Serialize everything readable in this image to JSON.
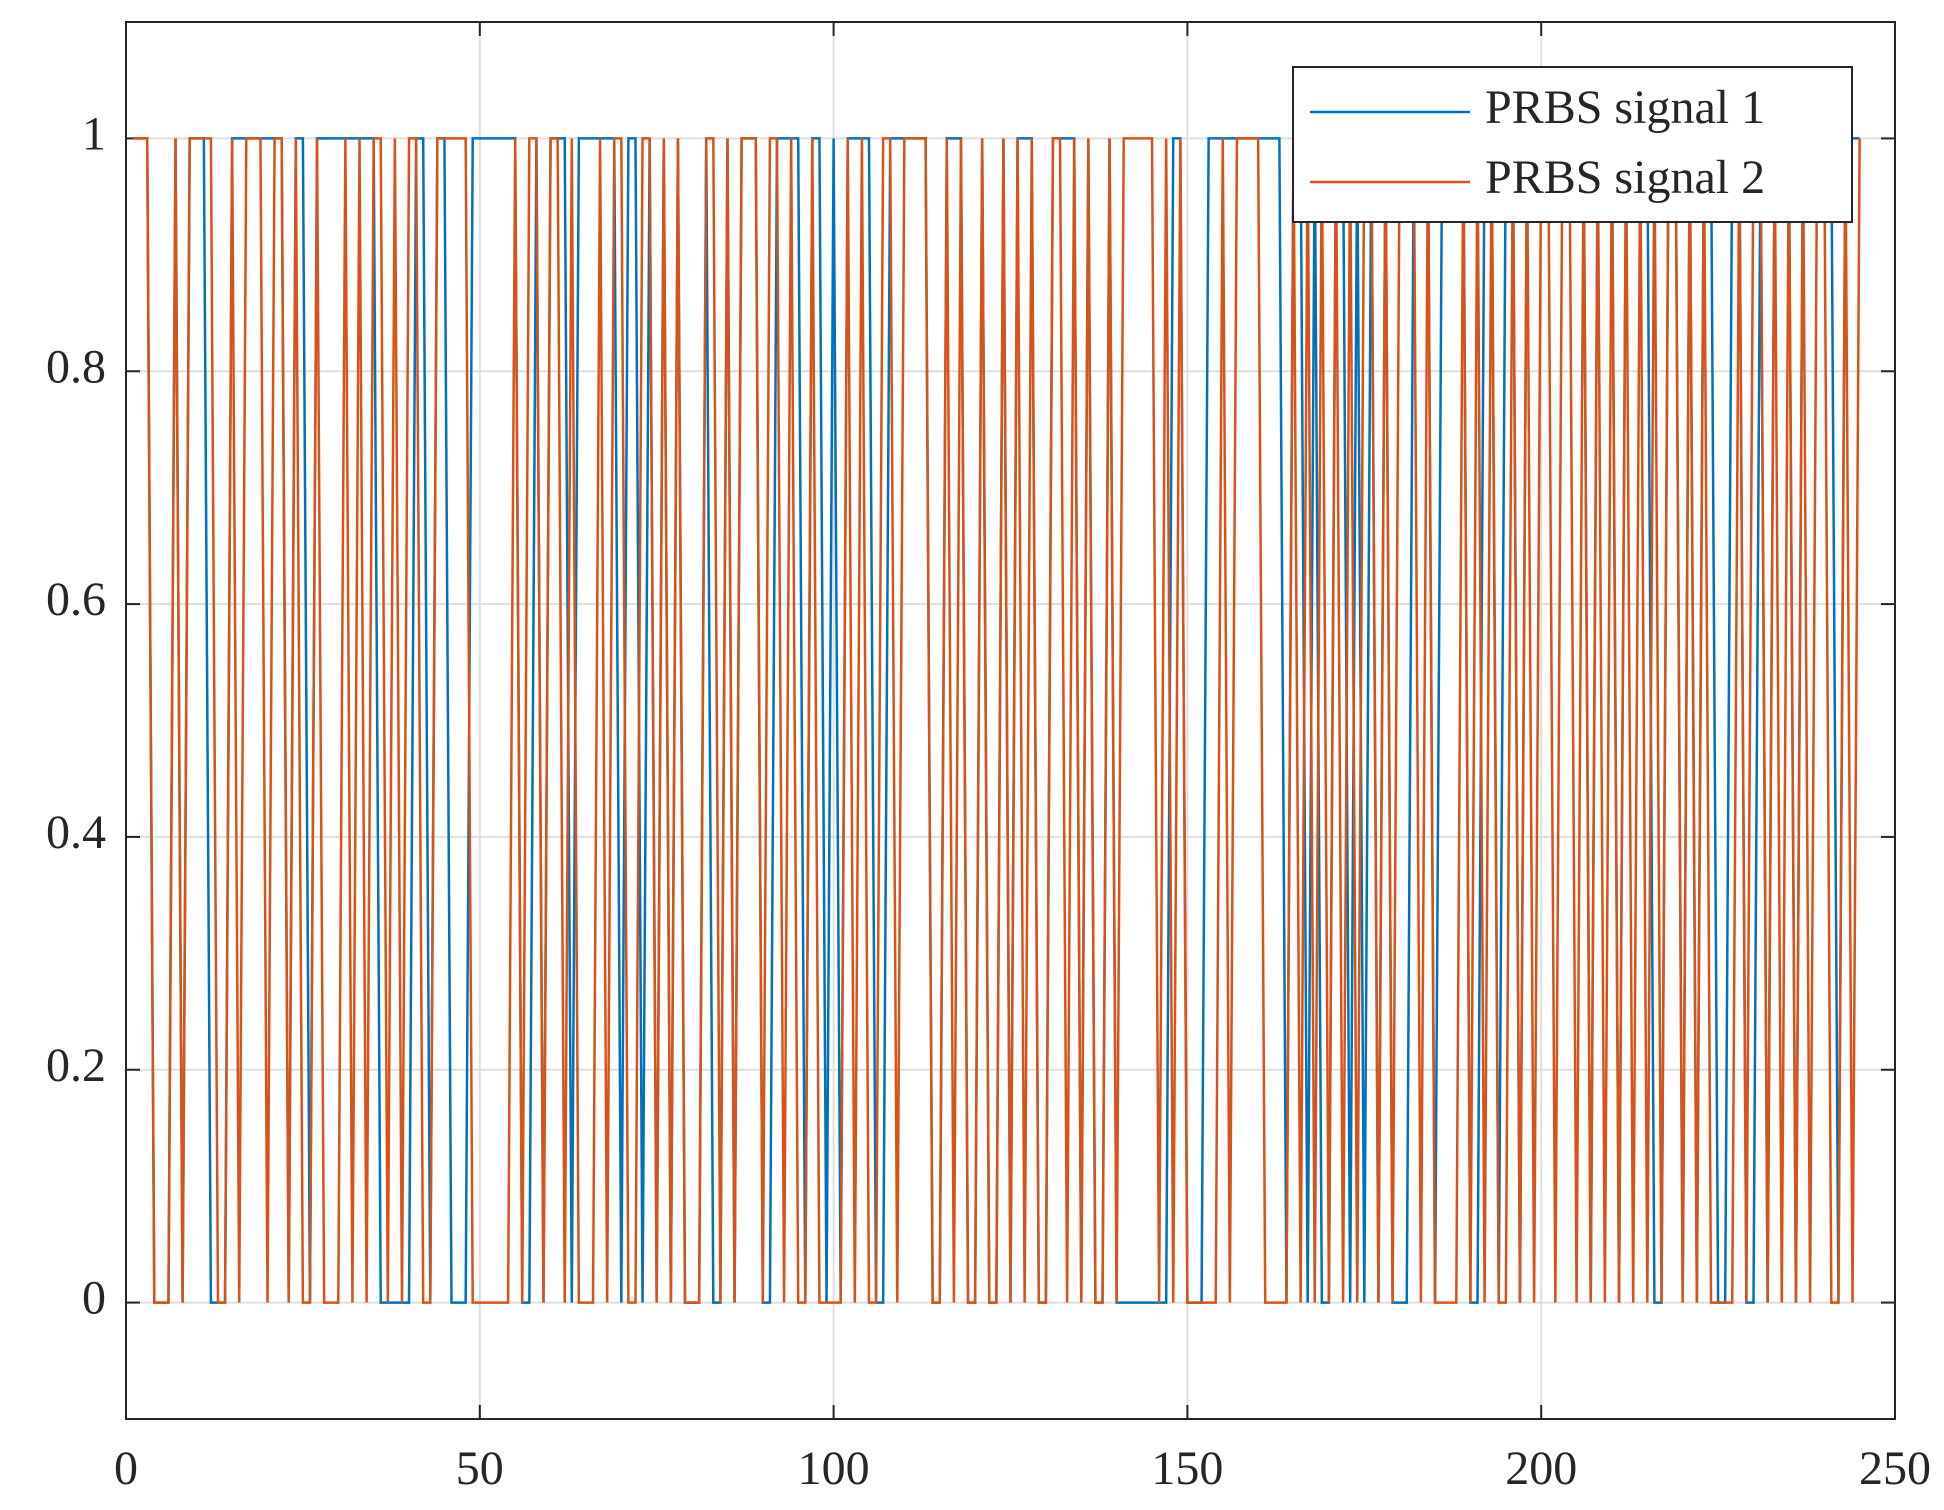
{
  "chart_data": {
    "type": "line",
    "x": [
      1,
      2,
      3,
      4,
      5,
      6,
      7,
      8,
      9,
      10,
      11,
      12,
      13,
      14,
      15,
      16,
      17,
      18,
      19,
      20,
      21,
      22,
      23,
      24,
      25,
      26,
      27,
      28,
      29,
      30,
      31,
      32,
      33,
      34,
      35,
      36,
      37,
      38,
      39,
      40,
      41,
      42,
      43,
      44,
      45,
      46,
      47,
      48,
      49,
      50,
      51,
      52,
      53,
      54,
      55,
      56,
      57,
      58,
      59,
      60,
      61,
      62,
      63,
      64,
      65,
      66,
      67,
      68,
      69,
      70,
      71,
      72,
      73,
      74,
      75,
      76,
      77,
      78,
      79,
      80,
      81,
      82,
      83,
      84,
      85,
      86,
      87,
      88,
      89,
      90,
      91,
      92,
      93,
      94,
      95,
      96,
      97,
      98,
      99,
      100,
      101,
      102,
      103,
      104,
      105,
      106,
      107,
      108,
      109,
      110,
      111,
      112,
      113,
      114,
      115,
      116,
      117,
      118,
      119,
      120,
      121,
      122,
      123,
      124,
      125,
      126,
      127,
      128,
      129,
      130,
      131,
      132,
      133,
      134,
      135,
      136,
      137,
      138,
      139,
      140,
      141,
      142,
      143,
      144,
      145,
      146,
      147,
      148,
      149,
      150,
      151,
      152,
      153,
      154,
      155,
      156,
      157,
      158,
      159,
      160,
      161,
      162,
      163,
      164,
      165,
      166,
      167,
      168,
      169,
      170,
      171,
      172,
      173,
      174,
      175,
      176,
      177,
      178,
      179,
      180,
      181,
      182,
      183,
      184,
      185,
      186,
      187,
      188,
      189,
      190,
      191,
      192,
      193,
      194,
      195,
      196,
      197,
      198,
      199,
      200,
      201,
      202,
      203,
      204,
      205,
      206,
      207,
      208,
      209,
      210,
      211,
      212,
      213,
      214,
      215,
      216,
      217,
      218,
      219,
      220,
      221,
      222,
      223,
      224,
      225,
      226,
      227,
      228,
      229,
      230,
      231,
      232,
      233,
      234,
      235,
      236,
      237,
      238,
      239,
      240,
      241,
      242,
      243,
      244,
      245
    ],
    "series": [
      {
        "name": "PRBS signal 1",
        "color": "#0072bd",
        "values": [
          1,
          1,
          1,
          0,
          0,
          0,
          1,
          0,
          1,
          1,
          1,
          0,
          0,
          0,
          1,
          1,
          1,
          1,
          1,
          1,
          1,
          1,
          0,
          1,
          1,
          0,
          1,
          1,
          1,
          1,
          1,
          1,
          1,
          1,
          1,
          0,
          0,
          0,
          0,
          0,
          1,
          1,
          0,
          1,
          1,
          0,
          0,
          0,
          1,
          1,
          1,
          1,
          1,
          1,
          1,
          0,
          0,
          1,
          0,
          1,
          1,
          1,
          0,
          1,
          1,
          1,
          1,
          1,
          1,
          0,
          1,
          1,
          0,
          1,
          0,
          1,
          0,
          1,
          0,
          0,
          0,
          1,
          0,
          0,
          1,
          0,
          1,
          1,
          1,
          0,
          0,
          1,
          1,
          1,
          1,
          0,
          1,
          1,
          0,
          1,
          0,
          1,
          1,
          1,
          1,
          0,
          0,
          1,
          1,
          1,
          1,
          1,
          1,
          0,
          0,
          1,
          1,
          1,
          0,
          0,
          1,
          0,
          0,
          1,
          0,
          1,
          1,
          1,
          0,
          0,
          1,
          1,
          1,
          1,
          0,
          1,
          0,
          0,
          1,
          0,
          0,
          0,
          0,
          0,
          0,
          0,
          0,
          1,
          1,
          0,
          0,
          0,
          1,
          1,
          1,
          1,
          1,
          1,
          1,
          1,
          1,
          1,
          1,
          0,
          1,
          1,
          0,
          1,
          0,
          0,
          1,
          1,
          0,
          1,
          0,
          1,
          0,
          1,
          0,
          0,
          0,
          1,
          1,
          1,
          0,
          1,
          1,
          1,
          1,
          0,
          0,
          1,
          1,
          0,
          1,
          1,
          0,
          1,
          1,
          1,
          1,
          1,
          1,
          1,
          1,
          1,
          0,
          1,
          1,
          1,
          0,
          1,
          1,
          1,
          1,
          0,
          0,
          1,
          1,
          0,
          1,
          0,
          1,
          1,
          0,
          0,
          1,
          1,
          0,
          0,
          1,
          0,
          1,
          1,
          1,
          0,
          1,
          1,
          1,
          1,
          1,
          0,
          1,
          1,
          1
        ]
      },
      {
        "name": "PRBS signal 2",
        "color": "#d95319",
        "values": [
          1,
          1,
          1,
          0,
          0,
          0,
          1,
          0,
          1,
          1,
          1,
          1,
          0,
          0,
          1,
          0,
          1,
          1,
          1,
          0,
          1,
          1,
          0,
          1,
          0,
          0,
          1,
          0,
          0,
          0,
          1,
          0,
          1,
          0,
          1,
          1,
          0,
          1,
          0,
          1,
          1,
          0,
          0,
          1,
          1,
          1,
          1,
          1,
          0,
          0,
          0,
          0,
          0,
          0,
          1,
          0,
          1,
          1,
          0,
          1,
          1,
          0,
          1,
          0,
          0,
          0,
          1,
          0,
          1,
          1,
          0,
          0,
          1,
          1,
          0,
          1,
          0,
          1,
          0,
          0,
          0,
          1,
          1,
          0,
          1,
          0,
          1,
          1,
          1,
          0,
          1,
          1,
          0,
          1,
          0,
          0,
          1,
          0,
          0,
          0,
          0,
          1,
          0,
          1,
          0,
          0,
          1,
          1,
          0,
          1,
          1,
          1,
          1,
          0,
          0,
          1,
          0,
          1,
          0,
          0,
          1,
          0,
          0,
          1,
          0,
          1,
          0,
          1,
          0,
          0,
          1,
          1,
          0,
          1,
          0,
          1,
          0,
          0,
          1,
          0,
          1,
          1,
          1,
          1,
          1,
          0,
          1,
          0,
          1,
          0,
          0,
          0,
          0,
          0,
          1,
          0,
          1,
          1,
          1,
          1,
          0,
          0,
          0,
          0,
          1,
          0,
          1,
          0,
          1,
          0,
          1,
          0,
          1,
          0,
          1,
          1,
          0,
          1,
          0,
          1,
          1,
          1,
          0,
          1,
          0,
          0,
          0,
          0,
          1,
          0,
          1,
          0,
          1,
          0,
          0,
          1,
          0,
          1,
          0,
          1,
          1,
          0,
          1,
          1,
          0,
          1,
          0,
          1,
          0,
          1,
          0,
          1,
          0,
          1,
          0,
          1,
          0,
          1,
          1,
          0,
          1,
          0,
          1,
          0,
          0,
          0,
          0,
          1,
          0,
          1,
          1,
          0,
          1,
          0,
          1,
          0,
          1,
          0,
          1,
          1,
          0,
          0,
          1,
          0,
          1
        ]
      }
    ],
    "xlim": [
      0,
      250
    ],
    "xticks": [
      0,
      50,
      100,
      150,
      200,
      250
    ],
    "ylim": [
      -0.1,
      1.1
    ],
    "yticks": [
      0,
      0.2,
      0.4,
      0.6,
      0.8,
      1
    ],
    "grid": true,
    "legend": "northeast"
  }
}
